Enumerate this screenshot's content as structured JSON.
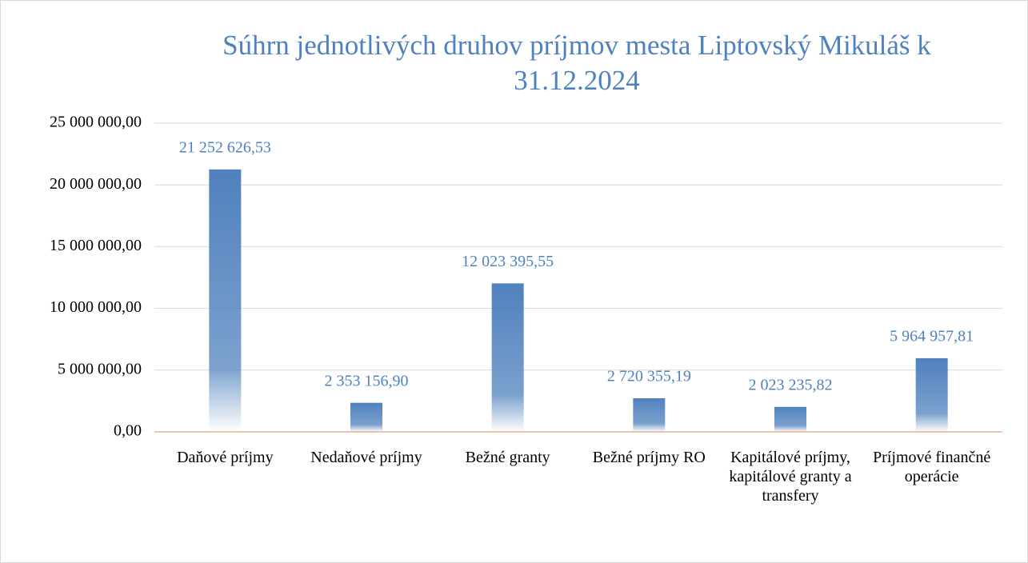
{
  "chart_data": {
    "type": "bar",
    "title": "Súhrn jednotlivých druhov príjmov mesta Liptovský Mikuláš k 31.12.2024",
    "categories": [
      "Daňové príjmy",
      "Nedaňové príjmy",
      "Bežné granty",
      "Bežné príjmy RO",
      "Kapitálové príjmy, kapitálové granty a transfery",
      "Príjmové finančné operácie"
    ],
    "values": [
      21252626.53,
      2353156.9,
      12023395.55,
      2720355.19,
      2023235.82,
      5964957.81
    ],
    "value_labels": [
      "21 252 626,53",
      "2 353 156,90",
      "12 023 395,55",
      "2 720 355,19",
      "2 023 235,82",
      "5 964 957,81"
    ],
    "color": "#4f81bd",
    "ylim": [
      0,
      25000000
    ],
    "yticks": [
      {
        "value": 0,
        "label": "0,00"
      },
      {
        "value": 5000000,
        "label": "5 000 000,00"
      },
      {
        "value": 10000000,
        "label": "10 000 000,00"
      },
      {
        "value": 15000000,
        "label": "15 000 000,00"
      },
      {
        "value": 20000000,
        "label": "20 000 000,00"
      },
      {
        "value": 25000000,
        "label": "25 000 000,00"
      }
    ],
    "grid": true
  }
}
